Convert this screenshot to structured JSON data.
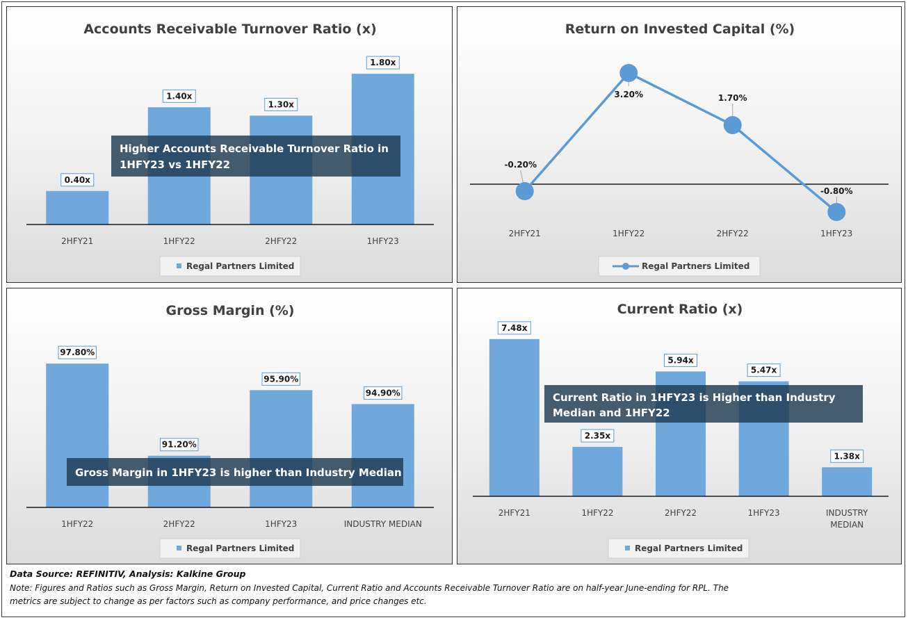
{
  "chart_data": [
    {
      "id": "ar",
      "type": "bar",
      "title": "Accounts Receivable Turnover Ratio (x)",
      "categories": [
        "2HFY21",
        "1HFY22",
        "2HFY22",
        "1HFY23"
      ],
      "series": [
        {
          "name": "Regal Partners Limited",
          "values": [
            0.4,
            1.4,
            1.3,
            1.8
          ],
          "labels": [
            "0.40x",
            "1.40x",
            "1.30x",
            "1.80x"
          ]
        }
      ],
      "ylim": [
        0,
        2.0
      ],
      "grid": false,
      "legend": "bottom",
      "annotation": [
        "Higher Accounts Receivable Turnover Ratio in",
        "1HFY23 vs 1HFY22"
      ],
      "color": "#6fa8dc"
    },
    {
      "id": "roic",
      "type": "line",
      "title": "Return on Invested Capital (%)",
      "categories": [
        "2HFY21",
        "1HFY22",
        "2HFY22",
        "1HFY23"
      ],
      "series": [
        {
          "name": "Regal Partners Limited",
          "values": [
            -0.2,
            3.2,
            1.7,
            -0.8
          ],
          "labels": [
            "-0.20%",
            "3.20%",
            "1.70%",
            "-0.80%"
          ]
        }
      ],
      "ylim": [
        -1.0,
        3.5
      ],
      "grid": false,
      "legend": "bottom",
      "color": "#5b9bd5"
    },
    {
      "id": "gm",
      "type": "bar",
      "title": "Gross Margin (%)",
      "categories": [
        "1HFY22",
        "2HFY22",
        "1HFY23",
        "INDUSTRY MEDIAN"
      ],
      "series": [
        {
          "name": "Regal Partners Limited",
          "values": [
            97.8,
            91.2,
            95.9,
            94.9
          ],
          "labels": [
            "97.80%",
            "91.20%",
            "95.90%",
            "94.90%"
          ]
        }
      ],
      "ylim": [
        87.5,
        99.5
      ],
      "grid": false,
      "legend": "bottom",
      "annotation": [
        "Gross Margin in 1HFY23 is higher than Industry Median"
      ],
      "color": "#6fa8dc"
    },
    {
      "id": "cr",
      "type": "bar",
      "title": "Current Ratio (x)",
      "categories": [
        "2HFY21",
        "1HFY22",
        "2HFY22",
        "1HFY23",
        "INDUSTRY\nMEDIAN"
      ],
      "series": [
        {
          "name": "Regal Partners Limited",
          "values": [
            7.48,
            2.35,
            5.94,
            5.47,
            1.38
          ],
          "labels": [
            "7.48x",
            "2.35x",
            "5.94x",
            "5.47x",
            "1.38x"
          ]
        }
      ],
      "ylim": [
        0,
        8.5
      ],
      "grid": false,
      "legend": "bottom",
      "annotation": [
        "Current Ratio in 1HFY23 is Higher than Industry",
        "Median and 1HFY22"
      ],
      "color": "#6fa8dc"
    }
  ],
  "footer": {
    "source": "Data Source: REFINITIV, Analysis: Kalkine Group",
    "note_line1": "Note: Figures and Ratios such as Gross Margin, Return on Invested Capital, Current Ratio and Accounts Receivable Turnover Ratio are on half-year June-ending for RPL. The",
    "note_line2": "metrics are subject to change as per factors such as company performance, and price changes etc."
  }
}
